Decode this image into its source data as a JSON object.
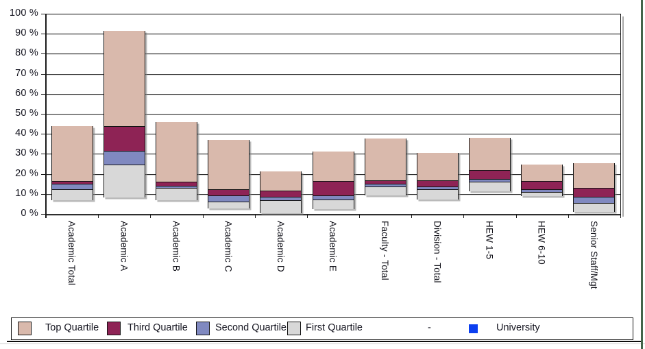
{
  "chart_data": {
    "type": "bar",
    "subtype": "floating_stacked_quartile_ranges",
    "title": "",
    "xlabel": "",
    "ylabel": "%",
    "ylim": [
      0,
      100
    ],
    "grid": true,
    "legend_position": "bottom",
    "ytick_values": [
      0,
      10,
      20,
      30,
      40,
      50,
      60,
      70,
      80,
      90,
      100
    ],
    "ytick_labels": [
      "0 %",
      "10 %",
      "20 %",
      "30 %",
      "40 %",
      "50 %",
      "60 %",
      "70 %",
      "80 %",
      "90 %",
      "100 %"
    ],
    "categories": [
      "Academic Total",
      "Academic A",
      "Academic B",
      "Academic C",
      "Academic D",
      "Academic E",
      "Faculty - Total",
      "Division - Total",
      "HEW 1-5",
      "HEW 6-10",
      "Senior Staff/Mgt"
    ],
    "series": [
      {
        "name": "First Quartile",
        "color": "#D8D8D8",
        "values_from": [
          7.0,
          8.3,
          7.0,
          2.8,
          0.3,
          2.4,
          9.2,
          7.2,
          11.3,
          8.8,
          0.9
        ],
        "values_to": [
          12.3,
          24.8,
          12.9,
          6.2,
          6.9,
          7.2,
          13.8,
          12.2,
          16.1,
          11.0,
          5.4
        ]
      },
      {
        "name": "Second Quartile",
        "color": "#8089C0",
        "values_from": [
          12.3,
          24.8,
          12.9,
          6.2,
          6.9,
          7.2,
          13.8,
          12.2,
          16.1,
          11.0,
          5.4
        ],
        "values_to": [
          15.0,
          31.6,
          14.0,
          9.2,
          8.5,
          9.2,
          15.1,
          13.8,
          17.5,
          12.4,
          8.5
        ]
      },
      {
        "name": "Third Quartile",
        "color": "#8E2355",
        "values_from": [
          15.0,
          31.6,
          14.0,
          9.2,
          8.5,
          9.2,
          15.1,
          13.8,
          17.5,
          12.4,
          8.5
        ],
        "values_to": [
          16.5,
          43.8,
          16.0,
          12.2,
          11.7,
          16.3,
          16.7,
          16.7,
          21.9,
          16.3,
          13.0
        ]
      },
      {
        "name": "Top Quartile",
        "color": "#D9B9AC",
        "values_from": [
          16.5,
          43.8,
          16.0,
          12.2,
          11.7,
          16.3,
          16.7,
          16.7,
          21.9,
          16.3,
          13.0
        ],
        "values_to": [
          44.0,
          91.6,
          45.8,
          37.0,
          21.1,
          31.3,
          37.8,
          30.6,
          37.9,
          24.5,
          25.2
        ]
      }
    ],
    "legend": [
      {
        "label": "Top Quartile",
        "color": "#D9B9AC",
        "kind": "box"
      },
      {
        "label": "Third Quartile",
        "color": "#8E2355",
        "kind": "box"
      },
      {
        "label": "Second Quartile",
        "color": "#8089C0",
        "kind": "box"
      },
      {
        "label": "First Quartile",
        "color": "#D8D8D8",
        "kind": "box"
      },
      {
        "label": "-",
        "kind": "dash"
      },
      {
        "label": "University",
        "color": "#0C3FF0",
        "kind": "smallbox"
      }
    ]
  },
  "frame": {
    "right_border_color": "#44654A",
    "bottom_rule_color": "#0D0D0D"
  }
}
